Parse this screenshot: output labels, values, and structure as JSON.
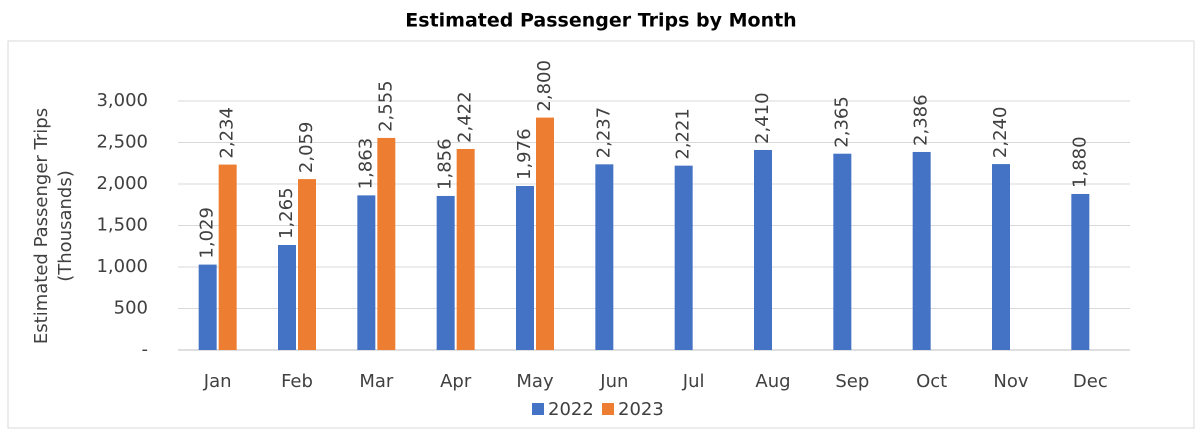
{
  "chart_data": {
    "type": "bar",
    "title": "Estimated Passenger Trips by Month",
    "y_label": [
      "Estimated Passenger Trips",
      "(Thousands)"
    ],
    "categories": [
      "Jan",
      "Feb",
      "Mar",
      "Apr",
      "May",
      "Jun",
      "Jul",
      "Aug",
      "Sep",
      "Oct",
      "Nov",
      "Dec"
    ],
    "series": [
      {
        "name": "2022",
        "color": "#4472c4",
        "values": [
          1029,
          1265,
          1863,
          1856,
          1976,
          2237,
          2221,
          2410,
          2365,
          2386,
          2240,
          1880
        ],
        "value_labels": [
          "1,029",
          "1,265",
          "1,863",
          "1,856",
          "1,976",
          "2,237",
          "2,221",
          "2,410",
          "2,365",
          "2,386",
          "2,240",
          "1,880"
        ]
      },
      {
        "name": "2023",
        "color": "#ed7d31",
        "values": [
          2234,
          2059,
          2555,
          2422,
          2800,
          null,
          null,
          null,
          null,
          null,
          null,
          null
        ],
        "value_labels": [
          "2,234",
          "2,059",
          "2,555",
          "2,422",
          "2,800",
          null,
          null,
          null,
          null,
          null,
          null,
          null
        ]
      }
    ],
    "ylim": [
      0,
      3000
    ],
    "yticks": [
      {
        "value": 0,
        "label": "-"
      },
      500,
      {
        "value": 1000,
        "label": "1,000"
      },
      {
        "value": 1500,
        "label": "1,500"
      },
      {
        "value": 2000,
        "label": "2,000"
      },
      {
        "value": 2500,
        "label": "2,500"
      },
      {
        "value": 3000,
        "label": "3,000"
      }
    ],
    "grid": true,
    "legend": "bottom"
  }
}
